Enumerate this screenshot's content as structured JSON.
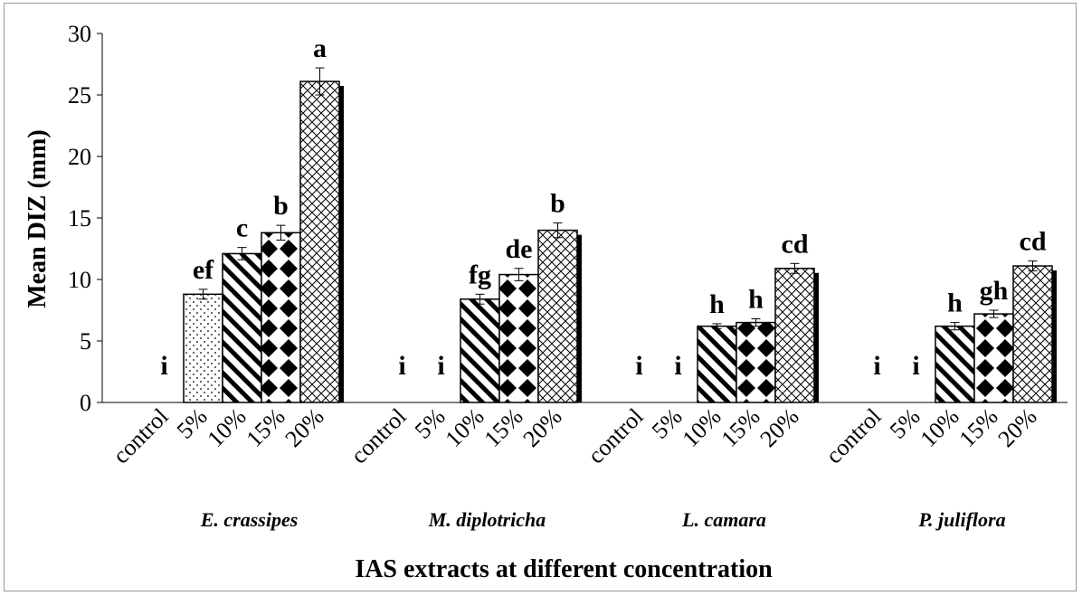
{
  "chart_data": {
    "type": "bar",
    "ylabel": "Mean DIZ (mm)",
    "xlabel": "IAS extracts at different concentration",
    "ylim": [
      0,
      30
    ],
    "yticks": [
      0,
      5,
      10,
      15,
      20,
      25,
      30
    ],
    "concentrations": [
      "control",
      "5%",
      "10%",
      "15%",
      "20%"
    ],
    "groups": [
      {
        "name": "E. crassipes",
        "values": [
          0,
          8.8,
          12.1,
          13.8,
          26.1
        ],
        "errors": [
          0,
          0.4,
          0.5,
          0.6,
          1.1
        ],
        "letters": [
          "i",
          "ef",
          "c",
          "b",
          "a"
        ]
      },
      {
        "name": "M. diplotricha",
        "values": [
          0,
          0,
          8.4,
          10.4,
          14.0
        ],
        "errors": [
          0,
          0,
          0.4,
          0.5,
          0.6
        ],
        "letters": [
          "i",
          "i",
          "fg",
          "de",
          "b"
        ]
      },
      {
        "name": "L. camara",
        "values": [
          0,
          0,
          6.2,
          6.5,
          10.9
        ],
        "errors": [
          0,
          0,
          0.2,
          0.3,
          0.4
        ],
        "letters": [
          "i",
          "i",
          "h",
          "h",
          "cd"
        ]
      },
      {
        "name": "P. juliflora",
        "values": [
          0,
          0,
          6.2,
          7.2,
          11.1
        ],
        "errors": [
          0,
          0,
          0.3,
          0.3,
          0.4
        ],
        "letters": [
          "i",
          "i",
          "h",
          "gh",
          "cd"
        ]
      }
    ],
    "patterns": [
      "none",
      "dots",
      "diagonal-stripes",
      "diamonds",
      "crosshatch"
    ],
    "grid": false,
    "legend": "none"
  },
  "colors": {
    "bar_stroke": "#000000",
    "bar_fill": "#ffffff",
    "shadow": "#000000",
    "frame": "#9a9a9a"
  }
}
